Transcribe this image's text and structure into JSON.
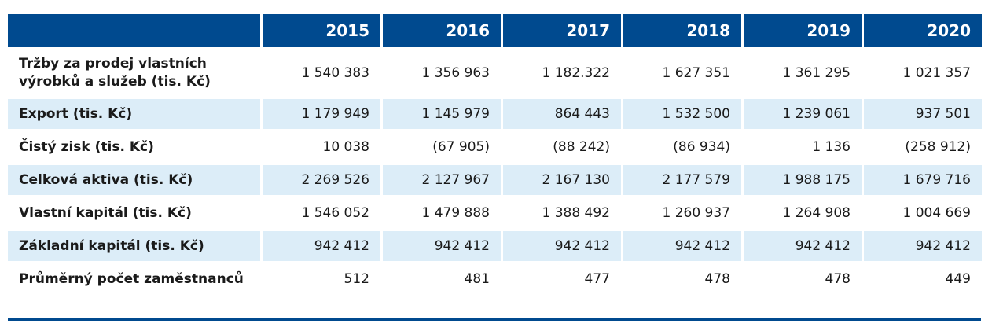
{
  "columns": [
    "2015",
    "2016",
    "2017",
    "2018",
    "2019",
    "2020"
  ],
  "rows": [
    {
      "label_line1": "Tržby za prodej vlastních",
      "label_line2": "výrobků a služeb (tis. Kč)",
      "values": [
        "1 540 383",
        "1 356 963",
        "1 182.322",
        "1 627 351",
        "1 361 295",
        "1 021 357"
      ]
    },
    {
      "label": "Export (tis. Kč)",
      "values": [
        "1 179 949",
        "1 145 979",
        "864 443",
        "1 532 500",
        "1 239 061",
        "937 501"
      ]
    },
    {
      "label": "Čistý zisk (tis. Kč)",
      "values": [
        "10 038",
        "(67 905)",
        "(88 242)",
        "(86 934)",
        "1 136",
        "(258 912)"
      ]
    },
    {
      "label": "Celková aktiva (tis. Kč)",
      "values": [
        "2 269 526",
        "2 127 967",
        "2 167 130",
        "2 177 579",
        "1 988 175",
        "1 679 716"
      ]
    },
    {
      "label": "Vlastní kapitál (tis. Kč)",
      "values": [
        "1 546 052",
        "1 479 888",
        "1 388 492",
        "1 260 937",
        "1 264 908",
        "1 004 669"
      ]
    },
    {
      "label": "Základní kapitál (tis. Kč)",
      "values": [
        "942 412",
        "942 412",
        "942 412",
        "942 412",
        "942 412",
        "942 412"
      ]
    },
    {
      "label": "Průměrný počet zaměstnanců",
      "values": [
        "512",
        "481",
        "477",
        "478",
        "478",
        "449"
      ]
    }
  ],
  "colors": {
    "header_bg": "#004a8f",
    "stripe_bg": "#dcedf8"
  }
}
